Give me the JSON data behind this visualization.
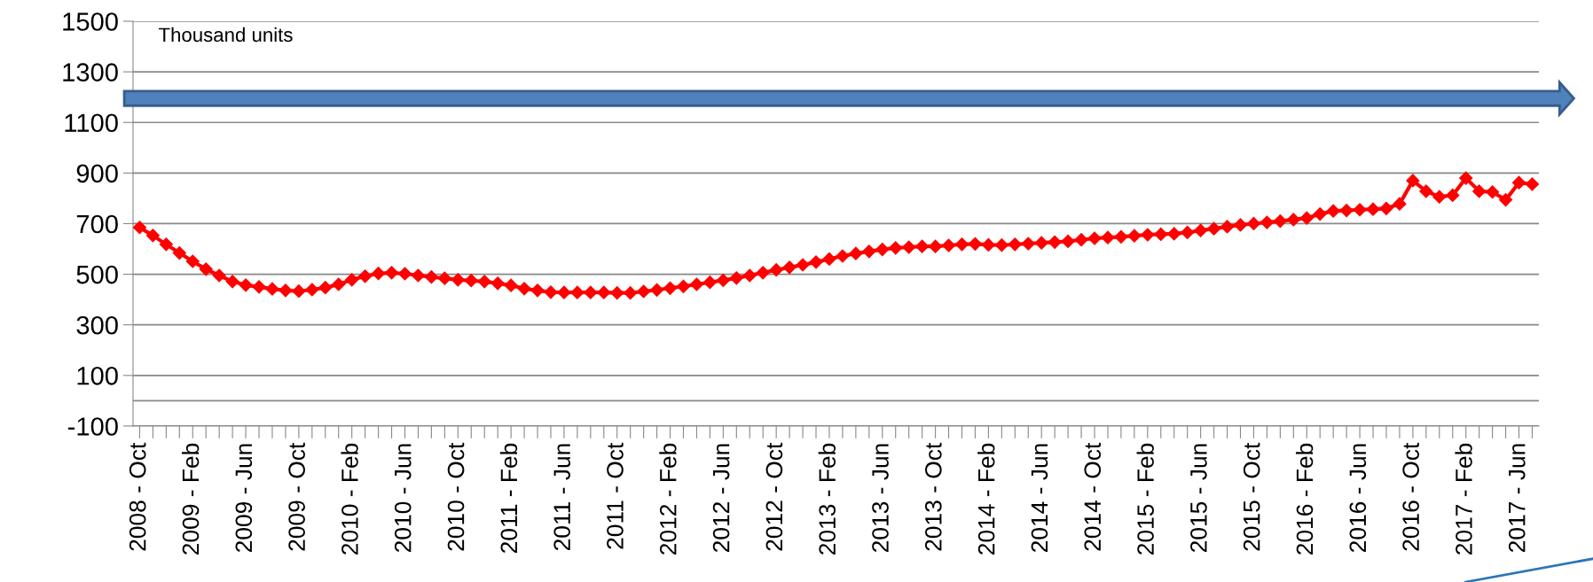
{
  "chart_data": {
    "type": "line",
    "categories": [
      "2008 - Oct",
      null,
      null,
      null,
      "2009 - Feb",
      null,
      null,
      null,
      "2009 - Jun",
      null,
      null,
      null,
      "2009 - Oct",
      null,
      null,
      null,
      "2010 - Feb",
      null,
      null,
      null,
      "2010 - Jun",
      null,
      null,
      null,
      "2010 - Oct",
      null,
      null,
      null,
      "2011 - Feb",
      null,
      null,
      null,
      "2011 - Jun",
      null,
      null,
      null,
      "2011 - Oct",
      null,
      null,
      null,
      "2012 - Feb",
      null,
      null,
      null,
      "2012 - Jun",
      null,
      null,
      null,
      "2012 - Oct",
      null,
      null,
      null,
      "2013 - Feb",
      null,
      null,
      null,
      "2013 - Jun",
      null,
      null,
      null,
      "2013 - Oct",
      null,
      null,
      null,
      "2014 - Feb",
      null,
      null,
      null,
      "2014 - Jun",
      null,
      null,
      null,
      "2014 - Oct",
      null,
      null,
      null,
      "2015 - Feb",
      null,
      null,
      null,
      "2015 - Jun",
      null,
      null,
      null,
      "2015 - Oct",
      null,
      null,
      null,
      "2016 - Feb",
      null,
      null,
      null,
      "2016 - Jun",
      null,
      null,
      null,
      "2016 - Oct",
      null,
      null,
      null,
      "2017 - Feb",
      null,
      null,
      null,
      "2017 - Jun",
      null
    ],
    "series": [
      {
        "color": "#ff0000",
        "values": [
          685,
          653,
          618,
          584,
          551,
          520,
          495,
          471,
          457,
          450,
          442,
          436,
          433,
          439,
          447,
          460,
          478,
          492,
          503,
          506,
          502,
          495,
          489,
          484,
          478,
          475,
          471,
          464,
          456,
          443,
          436,
          429,
          428,
          428,
          428,
          428,
          426,
          426,
          432,
          438,
          445,
          452,
          460,
          468,
          476,
          485,
          495,
          506,
          517,
          527,
          537,
          548,
          560,
          572,
          582,
          590,
          598,
          604,
          607,
          610,
          610,
          614,
          618,
          620,
          616,
          615,
          618,
          621,
          624,
          627,
          630,
          636,
          642,
          645,
          648,
          652,
          656,
          658,
          660,
          665,
          673,
          680,
          688,
          695,
          700,
          705,
          710,
          716,
          722,
          738,
          750,
          752,
          755,
          757,
          760,
          778,
          870,
          828,
          806,
          812,
          880,
          828,
          825,
          794,
          862,
          856
        ]
      }
    ],
    "ylim": [
      -100,
      1500
    ],
    "yticks": [
      -100,
      100,
      300,
      500,
      700,
      900,
      1100,
      1300,
      1500
    ],
    "grid": "y",
    "marker": "diamond",
    "line_style": "solid",
    "annotations": [
      "Thousand units"
    ]
  }
}
